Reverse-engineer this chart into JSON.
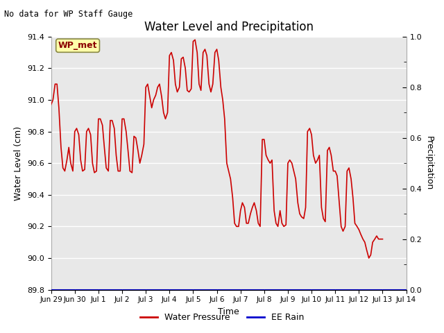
{
  "title": "Water Level and Precipitation",
  "top_left_text": "No data for WP Staff Gauge",
  "xlabel": "Time",
  "ylabel_left": "Water Level (cm)",
  "ylabel_right": "Precipitation",
  "ylim_left": [
    89.8,
    91.4
  ],
  "ylim_right": [
    0.0,
    1.0
  ],
  "bg_color": "#e8e8e8",
  "legend_entries": [
    "Water Pressure",
    "EE Rain"
  ],
  "water_pressure_color": "#cc0000",
  "ee_rain_color": "#0000cd",
  "wp_met_box_facecolor": "#ffffaa",
  "wp_met_box_edgecolor": "#888844",
  "wp_met_text_color": "#8b0000",
  "x_tick_labels": [
    "Jun 29",
    "Jun 30",
    "Jul 1",
    "Jul 2",
    "Jul 3",
    "Jul 4",
    "Jul 5",
    "Jul 6",
    "Jul 7",
    "Jul 8",
    "Jul 9",
    "Jul 10",
    "Jul 11",
    "Jul 12",
    "Jul 13",
    "Jul 14"
  ],
  "water_level_times": [
    0.0,
    0.08,
    0.17,
    0.25,
    0.33,
    0.42,
    0.5,
    0.58,
    0.67,
    0.75,
    0.83,
    0.92,
    1.0,
    1.08,
    1.17,
    1.25,
    1.33,
    1.42,
    1.5,
    1.58,
    1.67,
    1.75,
    1.83,
    1.92,
    2.0,
    2.08,
    2.17,
    2.25,
    2.33,
    2.42,
    2.5,
    2.58,
    2.67,
    2.75,
    2.83,
    2.92,
    3.0,
    3.08,
    3.17,
    3.25,
    3.33,
    3.42,
    3.5,
    3.58,
    3.67,
    3.75,
    3.83,
    3.92,
    4.0,
    4.08,
    4.17,
    4.25,
    4.33,
    4.42,
    4.5,
    4.58,
    4.67,
    4.75,
    4.83,
    4.92,
    5.0,
    5.08,
    5.17,
    5.25,
    5.33,
    5.42,
    5.5,
    5.58,
    5.67,
    5.75,
    5.83,
    5.92,
    6.0,
    6.08,
    6.17,
    6.25,
    6.33,
    6.42,
    6.5,
    6.58,
    6.67,
    6.75,
    6.83,
    6.92,
    7.0,
    7.08,
    7.17,
    7.25,
    7.33,
    7.42,
    7.5,
    7.58,
    7.67,
    7.75,
    7.83,
    7.92,
    8.0,
    8.08,
    8.17,
    8.25,
    8.33,
    8.42,
    8.5,
    8.58,
    8.67,
    8.75,
    8.83,
    8.92,
    9.0,
    9.08,
    9.17,
    9.25,
    9.33,
    9.42,
    9.5,
    9.58,
    9.67,
    9.75,
    9.83,
    9.92,
    10.0,
    10.08,
    10.17,
    10.25,
    10.33,
    10.42,
    10.5,
    10.58,
    10.67,
    10.75,
    10.83,
    10.92,
    11.0,
    11.08,
    11.17,
    11.25,
    11.33,
    11.42,
    11.5,
    11.58,
    11.67,
    11.75,
    11.83,
    11.92,
    12.0,
    12.08,
    12.17,
    12.25,
    12.33,
    12.42,
    12.5,
    12.58,
    12.67,
    12.75,
    12.83,
    12.92,
    13.0,
    13.08,
    13.17,
    13.25,
    13.33,
    13.42,
    13.5,
    13.58,
    13.67,
    13.75,
    13.83,
    13.92,
    14.0
  ],
  "water_level_values": [
    90.97,
    91.0,
    91.1,
    91.1,
    90.95,
    90.7,
    90.57,
    90.55,
    90.62,
    90.7,
    90.6,
    90.55,
    90.8,
    90.82,
    90.78,
    90.62,
    90.55,
    90.56,
    90.8,
    90.82,
    90.78,
    90.6,
    90.54,
    90.55,
    90.88,
    90.88,
    90.84,
    90.7,
    90.57,
    90.55,
    90.87,
    90.87,
    90.82,
    90.65,
    90.55,
    90.55,
    90.88,
    90.88,
    90.8,
    90.68,
    90.55,
    90.54,
    90.77,
    90.76,
    90.68,
    90.6,
    90.65,
    90.72,
    91.08,
    91.1,
    91.02,
    90.95,
    91.0,
    91.03,
    91.08,
    91.1,
    91.02,
    90.92,
    90.88,
    90.92,
    91.28,
    91.3,
    91.25,
    91.1,
    91.05,
    91.08,
    91.26,
    91.27,
    91.2,
    91.06,
    91.05,
    91.07,
    91.37,
    91.38,
    91.3,
    91.1,
    91.06,
    91.3,
    91.32,
    91.28,
    91.1,
    91.05,
    91.1,
    91.3,
    91.32,
    91.25,
    91.08,
    91.0,
    90.88,
    90.6,
    90.55,
    90.5,
    90.38,
    90.22,
    90.2,
    90.2,
    90.3,
    90.35,
    90.32,
    90.22,
    90.22,
    90.28,
    90.32,
    90.35,
    90.3,
    90.22,
    90.2,
    90.75,
    90.75,
    90.65,
    90.62,
    90.6,
    90.62,
    90.3,
    90.22,
    90.2,
    90.3,
    90.22,
    90.2,
    90.21,
    90.6,
    90.62,
    90.6,
    90.55,
    90.5,
    90.35,
    90.28,
    90.26,
    90.25,
    90.32,
    90.8,
    90.82,
    90.78,
    90.65,
    90.6,
    90.62,
    90.65,
    90.32,
    90.25,
    90.23,
    90.68,
    90.7,
    90.65,
    90.55,
    90.55,
    90.52,
    90.35,
    90.2,
    90.17,
    90.2,
    90.55,
    90.57,
    90.5,
    90.38,
    90.22,
    90.2,
    90.18,
    90.15,
    90.12,
    90.1,
    90.05,
    90.0,
    90.02,
    90.1,
    90.12,
    90.14,
    90.12,
    90.12,
    90.12
  ]
}
